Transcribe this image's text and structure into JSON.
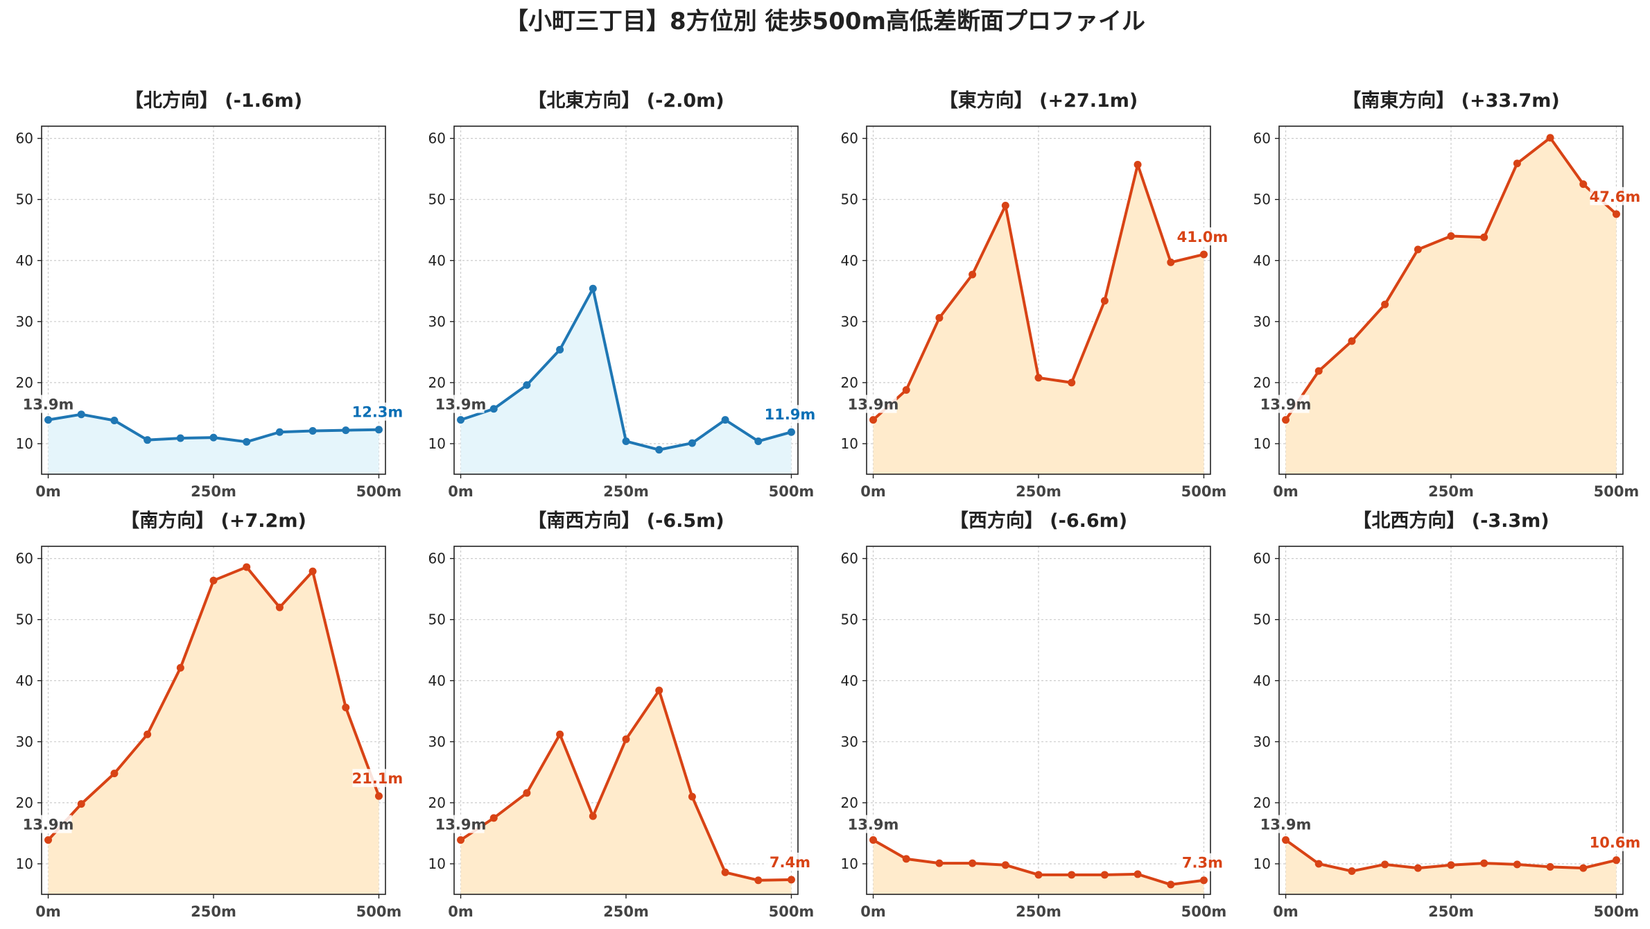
{
  "figure_title": "【小町三丁目】8方位別 徒歩500m高低差断面プロファイル",
  "colors": {
    "down_line": "#1f77b4",
    "down_line_dark": "#0a6fb5",
    "down_fill": "#e5f5fb",
    "up_line": "#d84315",
    "up_fill": "#ffebcc",
    "start_label": "#444444",
    "grid": "#cccccc",
    "axis": "#222222"
  },
  "chart_data": [
    {
      "type": "area",
      "title": "【北方向】 (-1.6m)",
      "trend": "down",
      "x": [
        0,
        50,
        100,
        150,
        200,
        250,
        300,
        350,
        400,
        450,
        500
      ],
      "values": [
        13.9,
        14.8,
        13.8,
        10.6,
        10.9,
        11.0,
        10.3,
        11.9,
        12.1,
        12.2,
        12.3
      ],
      "start_label": "13.9m",
      "end_label": "12.3m",
      "xticks": [
        "0m",
        "250m",
        "500m"
      ],
      "yticks": [
        10,
        20,
        30,
        40,
        50,
        60
      ],
      "ylim": [
        5,
        62
      ],
      "xlim": [
        -10,
        510
      ],
      "grid": true
    },
    {
      "type": "area",
      "title": "【北東方向】 (-2.0m)",
      "trend": "down",
      "x": [
        0,
        50,
        100,
        150,
        200,
        250,
        300,
        350,
        400,
        450,
        500
      ],
      "values": [
        13.9,
        15.7,
        19.6,
        25.4,
        35.4,
        10.4,
        9.0,
        10.1,
        13.9,
        10.4,
        11.9
      ],
      "start_label": "13.9m",
      "end_label": "11.9m",
      "xticks": [
        "0m",
        "250m",
        "500m"
      ],
      "yticks": [
        10,
        20,
        30,
        40,
        50,
        60
      ],
      "ylim": [
        5,
        62
      ],
      "xlim": [
        -10,
        510
      ],
      "grid": true
    },
    {
      "type": "area",
      "title": "【東方向】 (+27.1m)",
      "trend": "up",
      "x": [
        0,
        50,
        100,
        150,
        200,
        250,
        300,
        350,
        400,
        450,
        500
      ],
      "values": [
        13.9,
        18.8,
        30.6,
        37.7,
        49.0,
        20.8,
        20.0,
        33.4,
        55.7,
        39.7,
        41.0
      ],
      "start_label": "13.9m",
      "end_label": "41.0m",
      "xticks": [
        "0m",
        "250m",
        "500m"
      ],
      "yticks": [
        10,
        20,
        30,
        40,
        50,
        60
      ],
      "ylim": [
        5,
        62
      ],
      "xlim": [
        -10,
        510
      ],
      "grid": true
    },
    {
      "type": "area",
      "title": "【南東方向】 (+33.7m)",
      "trend": "up",
      "x": [
        0,
        50,
        100,
        150,
        200,
        250,
        300,
        350,
        400,
        450,
        500
      ],
      "values": [
        13.9,
        21.9,
        26.8,
        32.8,
        41.8,
        44.0,
        43.8,
        55.9,
        60.1,
        52.5,
        47.6
      ],
      "start_label": "13.9m",
      "end_label": "47.6m",
      "xticks": [
        "0m",
        "250m",
        "500m"
      ],
      "yticks": [
        10,
        20,
        30,
        40,
        50,
        60
      ],
      "ylim": [
        5,
        62
      ],
      "xlim": [
        -10,
        510
      ],
      "grid": true
    },
    {
      "type": "area",
      "title": "【南方向】 (+7.2m)",
      "trend": "up",
      "x": [
        0,
        50,
        100,
        150,
        200,
        250,
        300,
        350,
        400,
        450,
        500
      ],
      "values": [
        13.9,
        19.8,
        24.8,
        31.2,
        42.1,
        56.4,
        58.6,
        52.0,
        57.9,
        35.6,
        21.1
      ],
      "start_label": "13.9m",
      "end_label": "21.1m",
      "xticks": [
        "0m",
        "250m",
        "500m"
      ],
      "yticks": [
        10,
        20,
        30,
        40,
        50,
        60
      ],
      "ylim": [
        5,
        62
      ],
      "xlim": [
        -10,
        510
      ],
      "grid": true
    },
    {
      "type": "area",
      "title": "【南西方向】 (-6.5m)",
      "trend": "up",
      "x": [
        0,
        50,
        100,
        150,
        200,
        250,
        300,
        350,
        400,
        450,
        500
      ],
      "values": [
        13.9,
        17.5,
        21.6,
        31.2,
        17.8,
        30.4,
        38.4,
        21.0,
        8.6,
        7.3,
        7.4
      ],
      "start_label": "13.9m",
      "end_label": "7.4m",
      "xticks": [
        "0m",
        "250m",
        "500m"
      ],
      "yticks": [
        10,
        20,
        30,
        40,
        50,
        60
      ],
      "ylim": [
        5,
        62
      ],
      "xlim": [
        -10,
        510
      ],
      "grid": true
    },
    {
      "type": "area",
      "title": "【西方向】 (-6.6m)",
      "trend": "up",
      "x": [
        0,
        50,
        100,
        150,
        200,
        250,
        300,
        350,
        400,
        450,
        500
      ],
      "values": [
        13.9,
        10.8,
        10.1,
        10.1,
        9.8,
        8.2,
        8.2,
        8.2,
        8.3,
        6.6,
        7.3
      ],
      "start_label": "13.9m",
      "end_label": "7.3m",
      "xticks": [
        "0m",
        "250m",
        "500m"
      ],
      "yticks": [
        10,
        20,
        30,
        40,
        50,
        60
      ],
      "ylim": [
        5,
        62
      ],
      "xlim": [
        -10,
        510
      ],
      "grid": true
    },
    {
      "type": "area",
      "title": "【北西方向】 (-3.3m)",
      "trend": "up",
      "x": [
        0,
        50,
        100,
        150,
        200,
        250,
        300,
        350,
        400,
        450,
        500
      ],
      "values": [
        13.9,
        10.0,
        8.8,
        9.9,
        9.3,
        9.8,
        10.1,
        9.9,
        9.5,
        9.3,
        10.6
      ],
      "start_label": "13.9m",
      "end_label": "10.6m",
      "xticks": [
        "0m",
        "250m",
        "500m"
      ],
      "yticks": [
        10,
        20,
        30,
        40,
        50,
        60
      ],
      "ylim": [
        5,
        62
      ],
      "xlim": [
        -10,
        510
      ],
      "grid": true
    }
  ]
}
